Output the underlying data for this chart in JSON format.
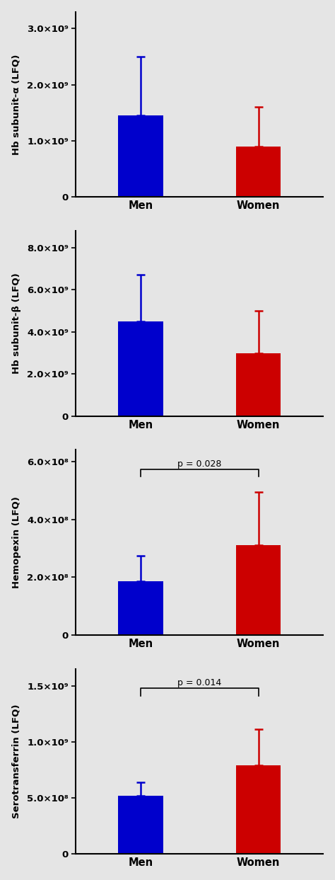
{
  "panels": [
    {
      "ylabel": "Hb subunit-α (LFQ)",
      "men_val": 1450000000.0,
      "women_val": 900000000.0,
      "men_err": 1050000000.0,
      "women_err": 700000000.0,
      "ylim": [
        0,
        3300000000.0
      ],
      "yticks": [
        0,
        1000000000.0,
        2000000000.0,
        3000000000.0
      ],
      "ytick_labels": [
        "0",
        "1.0×10⁹",
        "2.0×10⁹",
        "3.0×10⁹"
      ],
      "pval": null
    },
    {
      "ylabel": "Hb subunit-β (LFQ)",
      "men_val": 4500000000.0,
      "women_val": 3000000000.0,
      "men_err": 2200000000.0,
      "women_err": 2000000000.0,
      "ylim": [
        0,
        8800000000.0
      ],
      "yticks": [
        0,
        2000000000.0,
        4000000000.0,
        6000000000.0,
        8000000000.0
      ],
      "ytick_labels": [
        "0",
        "2.0×10⁹",
        "4.0×10⁹",
        "6.0×10⁹",
        "8.0×10⁹"
      ],
      "pval": null
    },
    {
      "ylabel": "Hemopexin (LFQ)",
      "men_val": 185000000.0,
      "women_val": 310000000.0,
      "men_err": 90000000.0,
      "women_err": 185000000.0,
      "ylim": [
        0,
        640000000.0
      ],
      "yticks": [
        0,
        200000000.0,
        400000000.0,
        600000000.0
      ],
      "ytick_labels": [
        "0",
        "2.0×10⁸",
        "4.0×10⁸",
        "6.0×10⁸"
      ],
      "pval": "p = 0.028"
    },
    {
      "ylabel": "Serotransferrin (LFQ)",
      "men_val": 520000000.0,
      "women_val": 790000000.0,
      "men_err": 120000000.0,
      "women_err": 320000000.0,
      "ylim": [
        0,
        1650000000.0
      ],
      "yticks": [
        0,
        500000000.0,
        1000000000.0,
        1500000000.0
      ],
      "ytick_labels": [
        "0",
        "5.0×10⁸",
        "1.0×10⁹",
        "1.5×10⁹"
      ],
      "pval": "p = 0.014"
    }
  ],
  "bar_colors": [
    "#0000cc",
    "#cc0000"
  ],
  "categories": [
    "Men",
    "Women"
  ],
  "background_color": "#e5e5e5",
  "bar_width": 0.38,
  "capsize": 4
}
